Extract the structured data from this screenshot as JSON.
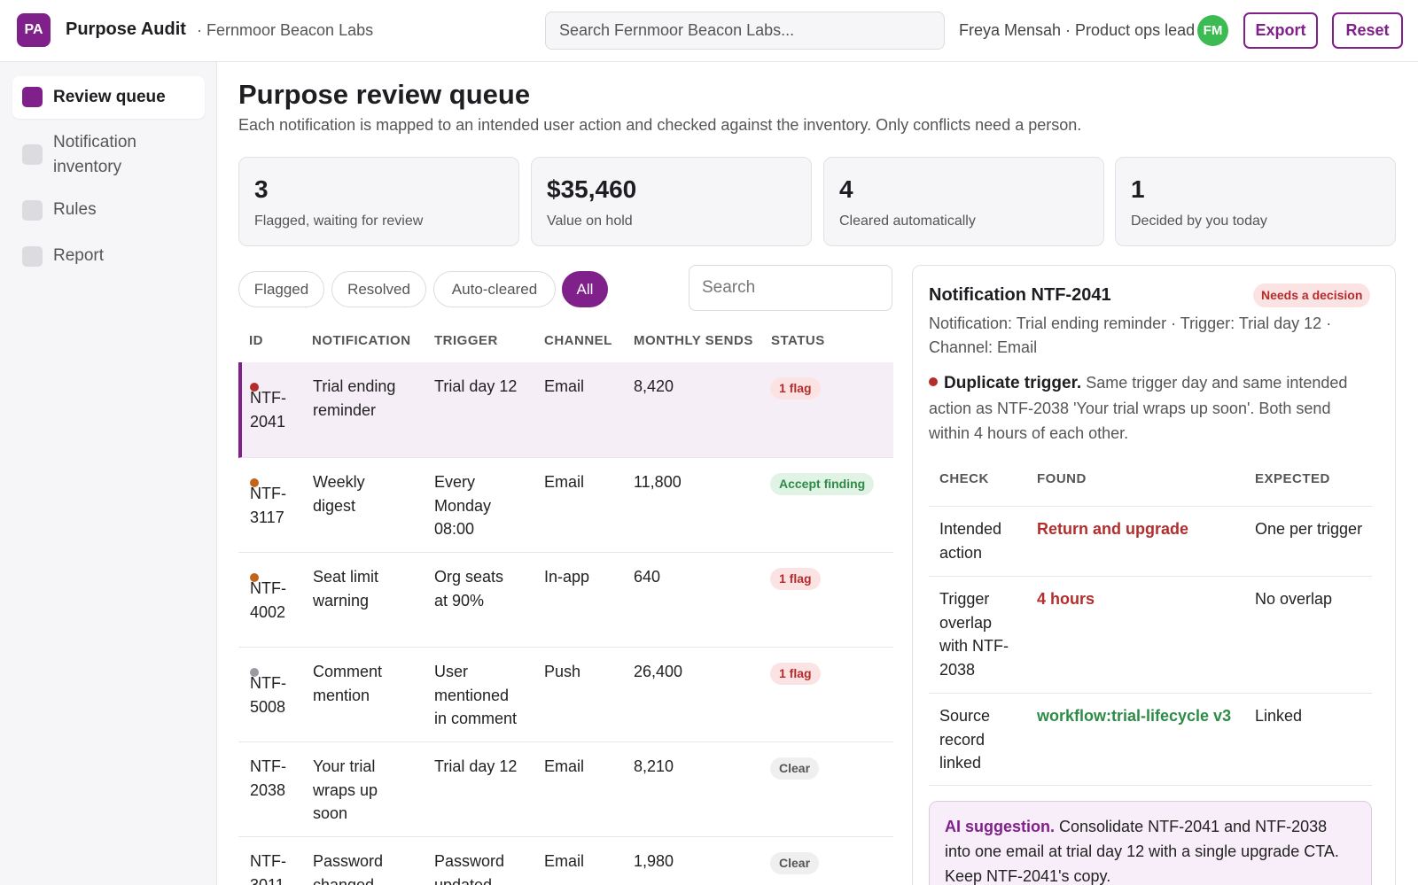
{
  "header": {
    "logo_text": "PA",
    "app_title": "Purpose Audit",
    "org": "· Fernmoor Beacon Labs",
    "search_placeholder": "Search Fernmoor Beacon Labs...",
    "user": "Freya Mensah · Product ops lead",
    "avatar_initials": "FM",
    "export_label": "Export",
    "reset_label": "Reset"
  },
  "sidebar": {
    "items": [
      {
        "label": "Review queue",
        "active": true
      },
      {
        "label": "Notification inventory",
        "active": false
      },
      {
        "label": "Rules",
        "active": false
      },
      {
        "label": "Report",
        "active": false
      }
    ]
  },
  "main": {
    "title": "Purpose review queue",
    "subtitle": "Each notification is mapped to an intended user action and checked against the inventory. Only conflicts need a person.",
    "stats": [
      {
        "value": "3",
        "label": "Flagged, waiting for review"
      },
      {
        "value": "$35,460",
        "label": "Value on hold"
      },
      {
        "value": "4",
        "label": "Cleared automatically"
      },
      {
        "value": "1",
        "label": "Decided by you today"
      }
    ],
    "filters": [
      "Flagged",
      "Resolved",
      "Auto-cleared",
      "All"
    ],
    "active_filter": "All",
    "list_search_placeholder": "Search",
    "columns": [
      "ID",
      "NOTIFICATION",
      "TRIGGER",
      "CHANNEL",
      "MONTHLY SENDS",
      "STATUS"
    ],
    "rows": [
      {
        "id": "NTF-\n2041",
        "notification": "Trial ending\nreminder",
        "trigger": "Trial day 12",
        "channel": "Email",
        "sends": "8,420",
        "status": "1 flag",
        "status_type": "flag",
        "dot": "#b32d2d"
      },
      {
        "id": "NTF-\n3117",
        "notification": "Weekly\ndigest",
        "trigger": "Every\nMonday\n08:00",
        "channel": "Email",
        "sends": "11,800",
        "status": "Accept finding",
        "status_type": "accept",
        "dot": "#c0661c"
      },
      {
        "id": "NTF-\n4002",
        "notification": "Seat limit\nwarning",
        "trigger": "Org seats\nat 90%",
        "channel": "In-app",
        "sends": "640",
        "status": "1 flag",
        "status_type": "flag",
        "dot": "#c0661c"
      },
      {
        "id": "NTF-\n5008",
        "notification": "Comment\nmention",
        "trigger": "User\nmentioned\nin comment",
        "channel": "Push",
        "sends": "26,400",
        "status": "1 flag",
        "status_type": "flag",
        "dot": "#9a9aa2"
      },
      {
        "id": "NTF-\n2038",
        "notification": "Your trial\nwraps up\nsoon",
        "trigger": "Trial day 12",
        "channel": "Email",
        "sends": "8,210",
        "status": "Clear",
        "status_type": "clear",
        "dot": ""
      },
      {
        "id": "NTF-\n3011",
        "notification": "Password\nchanged",
        "trigger": "Password\nupdated",
        "channel": "Email",
        "sends": "1,980",
        "status": "Clear",
        "status_type": "clear",
        "dot": ""
      }
    ]
  },
  "detail": {
    "title": "Notification NTF-2041",
    "badge": "Needs a decision",
    "meta": "Notification: Trial ending reminder · Trigger: Trial day 12 · Channel: Email",
    "finding_head": "Duplicate trigger.",
    "finding_text": " Same trigger day and same intended action as NTF-2038 'Your trial wraps up soon'. Both send within 4 hours of each other.",
    "columns": [
      "CHECK",
      "FOUND",
      "EXPECTED"
    ],
    "checks": [
      {
        "check": "Intended\naction",
        "found": "Return and upgrade",
        "found_color": "#b32d2d",
        "expected": "One per trigger"
      },
      {
        "check": "Trigger\noverlap\nwith NTF-\n2038",
        "found": "4 hours",
        "found_color": "#b32d2d",
        "expected": "No overlap"
      },
      {
        "check": "Source\nrecord\nlinked",
        "found": "workflow:trial-lifecycle v3",
        "found_color": "#2e8b47",
        "expected": "Linked"
      }
    ],
    "ai_head": "AI suggestion.",
    "ai_text": " Consolidate NTF-2041 and NTF-2038 into one email at trial day 12 with a single upgrade CTA. Keep NTF-2041's copy."
  },
  "colors": {
    "accent": "#80208a",
    "flag": "#b32d2d",
    "ok": "#2e8b47",
    "avatar": "#3dbb53"
  }
}
